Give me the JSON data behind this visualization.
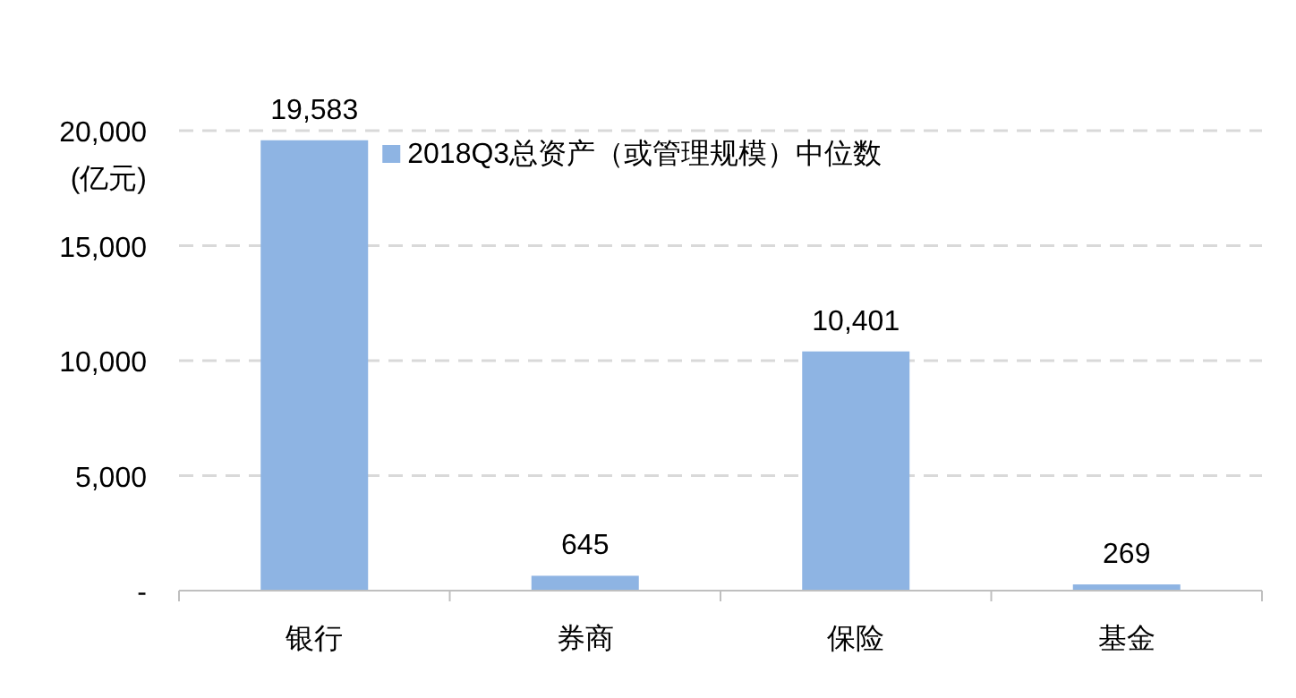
{
  "chart_data": {
    "type": "bar",
    "categories": [
      "银行",
      "券商",
      "保险",
      "基金"
    ],
    "series": [
      {
        "name": "2018Q3总资产（或管理规模）中位数",
        "color": "#8eb4e3",
        "values": [
          19583,
          645,
          10401,
          269
        ],
        "value_labels": [
          "19,583",
          "645",
          "10,401",
          "269"
        ]
      }
    ],
    "ylabel": "(亿元)",
    "ylim": [
      0,
      20000
    ],
    "yticks": [
      {
        "value": 0,
        "label": "-"
      },
      {
        "value": 5000,
        "label": "5,000"
      },
      {
        "value": 10000,
        "label": "10,000"
      },
      {
        "value": 15000,
        "label": "15,000"
      },
      {
        "value": 20000,
        "label": "20,000"
      }
    ],
    "grid": "y",
    "legend": "top"
  }
}
